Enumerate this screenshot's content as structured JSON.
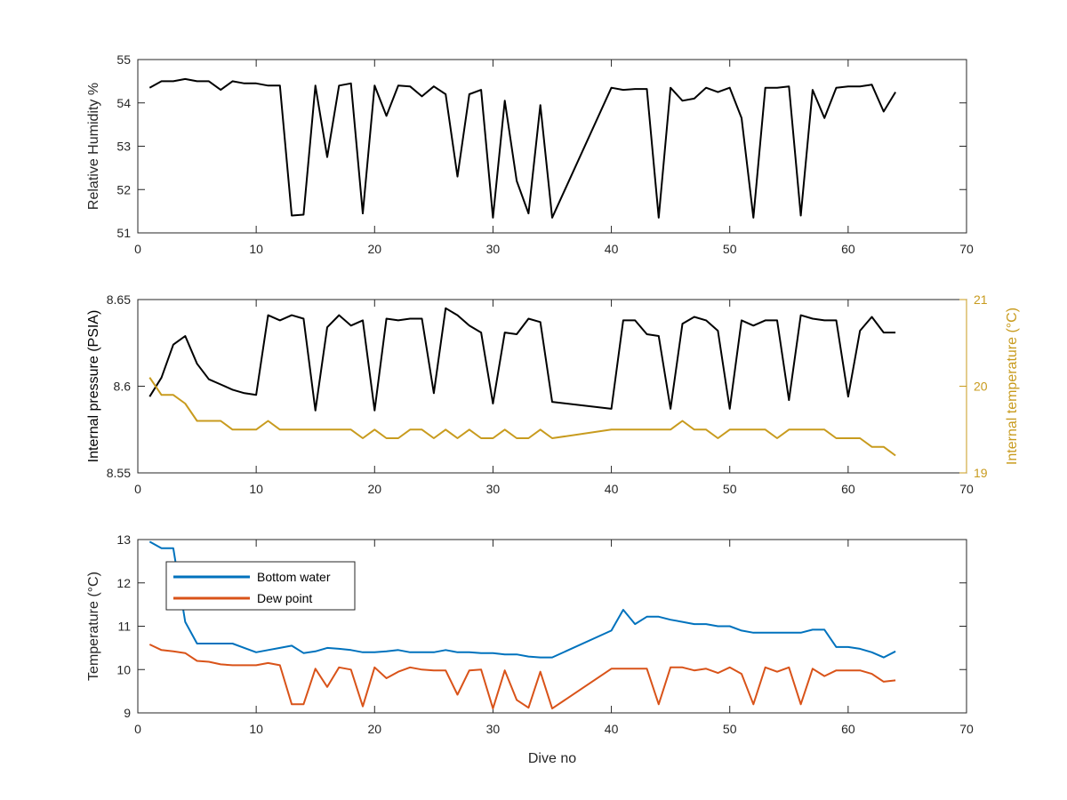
{
  "chart_data": [
    {
      "type": "line",
      "title": "",
      "xlabel": "",
      "ylabel": "Relative Humidity %",
      "xlim": [
        0,
        70
      ],
      "ylim": [
        51,
        55
      ],
      "xticks": [
        "0",
        "10",
        "20",
        "30",
        "40",
        "50",
        "60",
        "70"
      ],
      "yticks": [
        "51",
        "52",
        "53",
        "54",
        "55"
      ],
      "grid": false,
      "series": [
        {
          "color": "#000000",
          "x": [
            1,
            2,
            3,
            4,
            5,
            6,
            7,
            8,
            9,
            10,
            11,
            12,
            13,
            14,
            15,
            16,
            17,
            18,
            19,
            20,
            21,
            22,
            23,
            24,
            25,
            26,
            27,
            28,
            29,
            30,
            31,
            32,
            33,
            34,
            35,
            40,
            41,
            42,
            43,
            44,
            45,
            46,
            47,
            48,
            49,
            50,
            51,
            52,
            53,
            54,
            55,
            56,
            57,
            58,
            59,
            60,
            61,
            62,
            63,
            64
          ],
          "values": [
            54.35,
            54.5,
            54.5,
            54.55,
            54.5,
            54.5,
            54.3,
            54.5,
            54.45,
            54.45,
            54.4,
            54.4,
            51.4,
            51.42,
            54.4,
            52.75,
            54.4,
            54.45,
            51.45,
            54.4,
            53.7,
            54.4,
            54.38,
            54.15,
            54.38,
            54.2,
            52.3,
            54.2,
            54.3,
            51.35,
            54.05,
            52.2,
            51.45,
            53.95,
            51.35,
            54.35,
            54.3,
            54.32,
            54.32,
            51.35,
            54.35,
            54.05,
            54.1,
            54.35,
            54.25,
            54.35,
            53.65,
            51.35,
            54.35,
            54.35,
            54.38,
            51.4,
            54.3,
            53.65,
            54.35,
            54.38,
            54.38,
            54.42,
            53.8,
            54.25
          ]
        }
      ]
    },
    {
      "type": "line",
      "title": "",
      "xlabel": "",
      "ylabel": "Internal pressure (PSIA)",
      "ylabel_right": "Internal temperature (°C)",
      "xlim": [
        0,
        70
      ],
      "ylim": [
        8.55,
        8.65
      ],
      "ylim_right": [
        19,
        21
      ],
      "xticks": [
        "0",
        "10",
        "20",
        "30",
        "40",
        "50",
        "60",
        "70"
      ],
      "yticks": [
        "8.55",
        "8.6",
        "8.65"
      ],
      "yticks_right": [
        "19",
        "20",
        "21"
      ],
      "grid": false,
      "series": [
        {
          "axis": "left",
          "color": "#000000",
          "x": [
            1,
            2,
            3,
            4,
            5,
            6,
            7,
            8,
            9,
            10,
            11,
            12,
            13,
            14,
            15,
            16,
            17,
            18,
            19,
            20,
            21,
            22,
            23,
            24,
            25,
            26,
            27,
            28,
            29,
            30,
            31,
            32,
            33,
            34,
            35,
            40,
            41,
            42,
            43,
            44,
            45,
            46,
            47,
            48,
            49,
            50,
            51,
            52,
            53,
            54,
            55,
            56,
            57,
            58,
            59,
            60,
            61,
            62,
            63,
            64
          ],
          "values": [
            8.594,
            8.605,
            8.624,
            8.629,
            8.613,
            8.604,
            8.601,
            8.598,
            8.596,
            8.595,
            8.641,
            8.638,
            8.641,
            8.639,
            8.586,
            8.634,
            8.641,
            8.635,
            8.638,
            8.586,
            8.639,
            8.638,
            8.639,
            8.639,
            8.596,
            8.645,
            8.641,
            8.635,
            8.631,
            8.59,
            8.631,
            8.63,
            8.639,
            8.637,
            8.591,
            8.587,
            8.638,
            8.638,
            8.63,
            8.629,
            8.587,
            8.636,
            8.64,
            8.638,
            8.632,
            8.587,
            8.638,
            8.635,
            8.638,
            8.638,
            8.592,
            8.641,
            8.639,
            8.638,
            8.638,
            8.594,
            8.632,
            8.64,
            8.631,
            8.631
          ]
        },
        {
          "axis": "right",
          "color": "#C89B1E",
          "x": [
            1,
            2,
            3,
            4,
            5,
            6,
            7,
            8,
            9,
            10,
            11,
            12,
            13,
            14,
            15,
            16,
            17,
            18,
            19,
            20,
            21,
            22,
            23,
            24,
            25,
            26,
            27,
            28,
            29,
            30,
            31,
            32,
            33,
            34,
            35,
            40,
            41,
            42,
            43,
            44,
            45,
            46,
            47,
            48,
            49,
            50,
            51,
            52,
            53,
            54,
            55,
            56,
            57,
            58,
            59,
            60,
            61,
            62,
            63,
            64
          ],
          "values": [
            20.1,
            19.9,
            19.9,
            19.8,
            19.6,
            19.6,
            19.6,
            19.5,
            19.5,
            19.5,
            19.6,
            19.5,
            19.5,
            19.5,
            19.5,
            19.5,
            19.5,
            19.5,
            19.4,
            19.5,
            19.4,
            19.4,
            19.5,
            19.5,
            19.4,
            19.5,
            19.4,
            19.5,
            19.4,
            19.4,
            19.5,
            19.4,
            19.4,
            19.5,
            19.4,
            19.5,
            19.5,
            19.5,
            19.5,
            19.5,
            19.5,
            19.6,
            19.5,
            19.5,
            19.4,
            19.5,
            19.5,
            19.5,
            19.5,
            19.4,
            19.5,
            19.5,
            19.5,
            19.5,
            19.4,
            19.4,
            19.4,
            19.3,
            19.3,
            19.2
          ]
        }
      ]
    },
    {
      "type": "line",
      "title": "",
      "xlabel": "Dive no",
      "ylabel": "Temperature (°C)",
      "xlim": [
        0,
        70
      ],
      "ylim": [
        9,
        13
      ],
      "xticks": [
        "0",
        "10",
        "20",
        "30",
        "40",
        "50",
        "60",
        "70"
      ],
      "yticks": [
        "9",
        "10",
        "11",
        "12",
        "13"
      ],
      "grid": false,
      "legend": "top-left",
      "series": [
        {
          "name": "Bottom water",
          "color": "#0072BD",
          "x": [
            1,
            2,
            3,
            4,
            5,
            6,
            7,
            8,
            9,
            10,
            11,
            12,
            13,
            14,
            15,
            16,
            17,
            18,
            19,
            20,
            21,
            22,
            23,
            24,
            25,
            26,
            27,
            28,
            29,
            30,
            31,
            32,
            33,
            34,
            35,
            40,
            41,
            42,
            43,
            44,
            45,
            46,
            47,
            48,
            49,
            50,
            51,
            52,
            53,
            54,
            55,
            56,
            57,
            58,
            59,
            60,
            61,
            62,
            63,
            64
          ],
          "values": [
            12.95,
            12.8,
            12.8,
            11.1,
            10.6,
            10.6,
            10.6,
            10.6,
            10.5,
            10.4,
            10.45,
            10.5,
            10.55,
            10.38,
            10.42,
            10.5,
            10.48,
            10.45,
            10.4,
            10.4,
            10.42,
            10.45,
            10.4,
            10.4,
            10.4,
            10.45,
            10.4,
            10.4,
            10.38,
            10.38,
            10.35,
            10.35,
            10.3,
            10.28,
            10.28,
            10.9,
            11.38,
            11.05,
            11.22,
            11.22,
            11.15,
            11.1,
            11.05,
            11.05,
            11.0,
            11.0,
            10.9,
            10.85,
            10.85,
            10.85,
            10.85,
            10.85,
            10.92,
            10.92,
            10.52,
            10.52,
            10.48,
            10.4,
            10.28,
            10.42
          ]
        },
        {
          "name": "Dew point",
          "color": "#D95319",
          "x": [
            1,
            2,
            3,
            4,
            5,
            6,
            7,
            8,
            9,
            10,
            11,
            12,
            13,
            14,
            15,
            16,
            17,
            18,
            19,
            20,
            21,
            22,
            23,
            24,
            25,
            26,
            27,
            28,
            29,
            30,
            31,
            32,
            33,
            34,
            35,
            40,
            41,
            42,
            43,
            44,
            45,
            46,
            47,
            48,
            49,
            50,
            51,
            52,
            53,
            54,
            55,
            56,
            57,
            58,
            59,
            60,
            61,
            62,
            63,
            64
          ],
          "values": [
            10.58,
            10.45,
            10.42,
            10.38,
            10.2,
            10.18,
            10.12,
            10.1,
            10.1,
            10.1,
            10.15,
            10.1,
            9.2,
            9.2,
            10.02,
            9.6,
            10.05,
            10.0,
            9.15,
            10.05,
            9.8,
            9.95,
            10.05,
            10.0,
            9.98,
            9.98,
            9.42,
            9.98,
            10.0,
            9.1,
            9.98,
            9.3,
            9.12,
            9.95,
            9.1,
            10.02,
            10.02,
            10.02,
            10.02,
            9.2,
            10.05,
            10.05,
            9.98,
            10.02,
            9.92,
            10.05,
            9.9,
            9.2,
            10.05,
            9.95,
            10.05,
            9.2,
            10.02,
            9.85,
            9.98,
            9.98,
            9.98,
            9.9,
            9.72,
            9.75
          ]
        }
      ]
    }
  ]
}
